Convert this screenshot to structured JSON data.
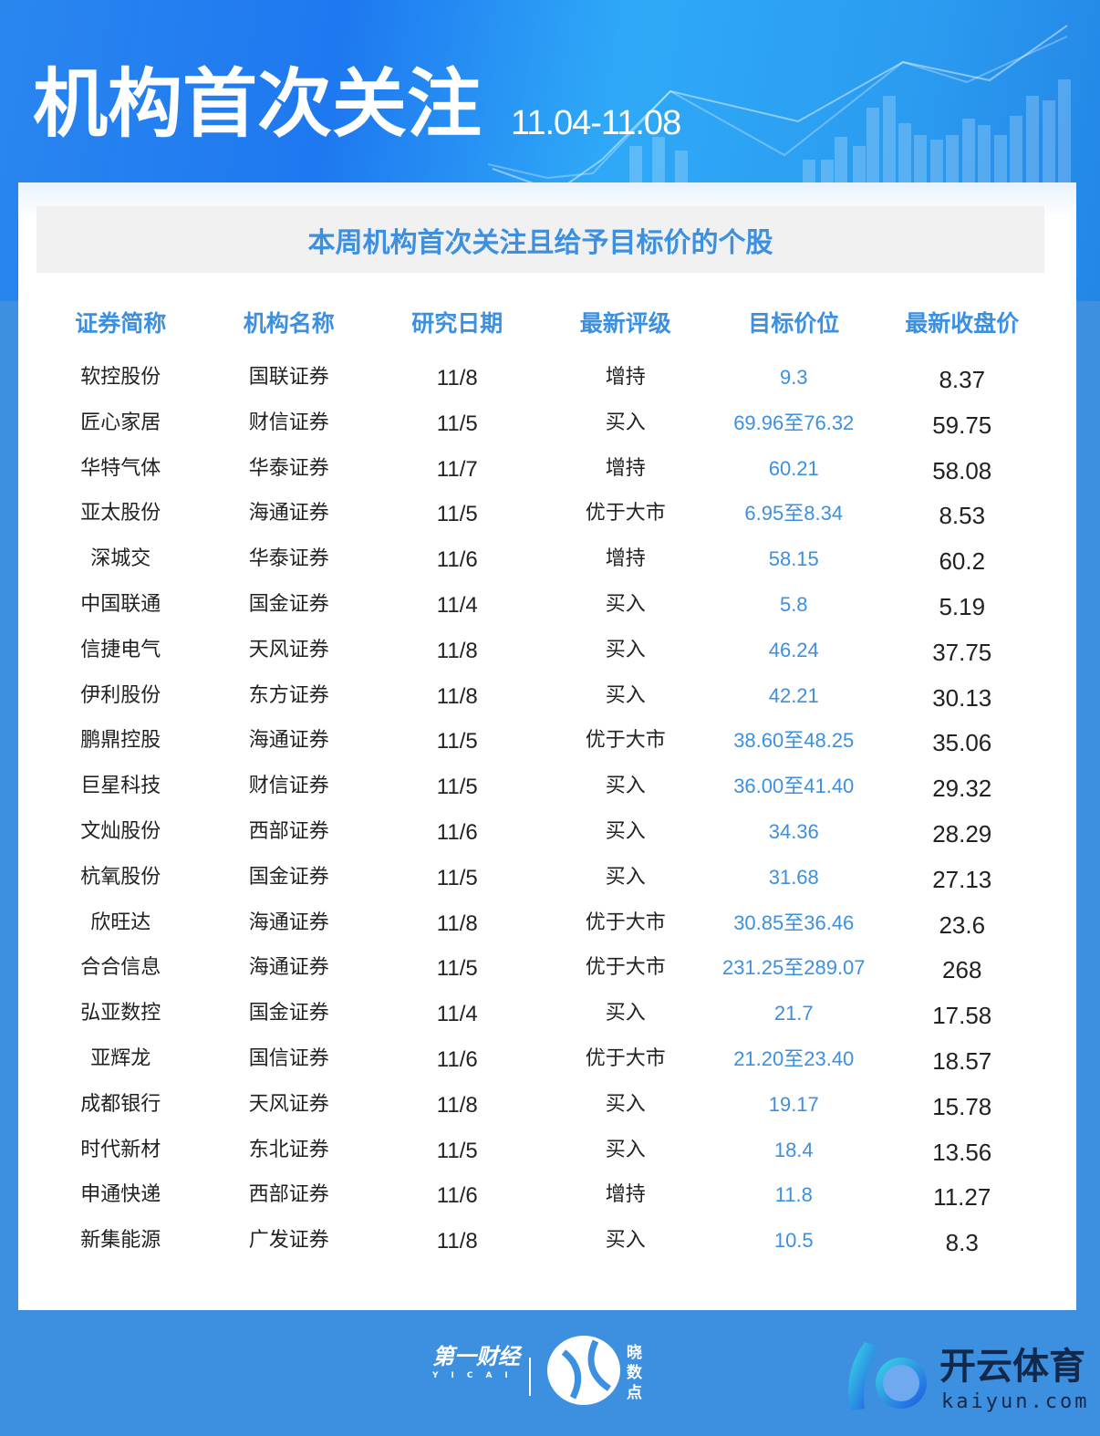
{
  "header": {
    "title": "机构首次关注",
    "date_range": "11.04-11.08"
  },
  "subtitle": "本周机构首次关注且给予目标价的个股",
  "table": {
    "columns": [
      "证券简称",
      "机构名称",
      "研究日期",
      "最新评级",
      "目标价位",
      "最新收盘价"
    ],
    "rows": [
      [
        "软控股份",
        "国联证券",
        "11/8",
        "增持",
        "9.3",
        "8.37"
      ],
      [
        "匠心家居",
        "财信证券",
        "11/5",
        "买入",
        "69.96至76.32",
        "59.75"
      ],
      [
        "华特气体",
        "华泰证券",
        "11/7",
        "增持",
        "60.21",
        "58.08"
      ],
      [
        "亚太股份",
        "海通证券",
        "11/5",
        "优于大市",
        "6.95至8.34",
        "8.53"
      ],
      [
        "深城交",
        "华泰证券",
        "11/6",
        "增持",
        "58.15",
        "60.2"
      ],
      [
        "中国联通",
        "国金证券",
        "11/4",
        "买入",
        "5.8",
        "5.19"
      ],
      [
        "信捷电气",
        "天风证券",
        "11/8",
        "买入",
        "46.24",
        "37.75"
      ],
      [
        "伊利股份",
        "东方证券",
        "11/8",
        "买入",
        "42.21",
        "30.13"
      ],
      [
        "鹏鼎控股",
        "海通证券",
        "11/5",
        "优于大市",
        "38.60至48.25",
        "35.06"
      ],
      [
        "巨星科技",
        "财信证券",
        "11/5",
        "买入",
        "36.00至41.40",
        "29.32"
      ],
      [
        "文灿股份",
        "西部证券",
        "11/6",
        "买入",
        "34.36",
        "28.29"
      ],
      [
        "杭氧股份",
        "国金证券",
        "11/5",
        "买入",
        "31.68",
        "27.13"
      ],
      [
        "欣旺达",
        "海通证券",
        "11/8",
        "优于大市",
        "30.85至36.46",
        "23.6"
      ],
      [
        "合合信息",
        "海通证券",
        "11/5",
        "优于大市",
        "231.25至289.07",
        "268"
      ],
      [
        "弘亚数控",
        "国金证券",
        "11/4",
        "买入",
        "21.7",
        "17.58"
      ],
      [
        "亚辉龙",
        "国信证券",
        "11/6",
        "优于大市",
        "21.20至23.40",
        "18.57"
      ],
      [
        "成都银行",
        "天风证券",
        "11/8",
        "买入",
        "19.17",
        "15.78"
      ],
      [
        "时代新材",
        "东北证券",
        "11/5",
        "买入",
        "18.4",
        "13.56"
      ],
      [
        "申通快递",
        "西部证券",
        "11/6",
        "增持",
        "11.8",
        "11.27"
      ],
      [
        "新集能源",
        "广发证券",
        "11/8",
        "买入",
        "10.5",
        "8.3"
      ]
    ]
  },
  "footer": {
    "logo_yicai": "第一财经",
    "logo_yicai_en": "YICAI",
    "logo_xiaoshudian": "晓数点",
    "brand_name": "开云体育",
    "brand_url": "kaiyun.com"
  },
  "colors": {
    "accent": "#3d8fe0",
    "footer_bg": "#3d8fe0",
    "subtitle_bg": "#f1f1f1"
  }
}
